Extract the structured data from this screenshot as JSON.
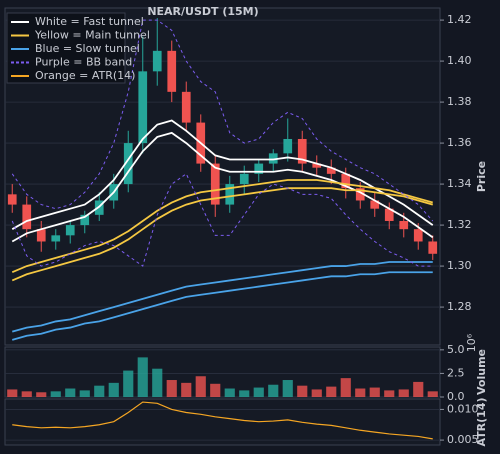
{
  "chart_data": [
    {
      "type": "candlestick",
      "title": "NEAR/USDT (15M)",
      "ylabel": "Price",
      "up_color": "#26a69a",
      "down_color": "#ef5350",
      "open": [
        1.335,
        1.33,
        1.318,
        1.312,
        1.315,
        1.32,
        1.325,
        1.332,
        1.34,
        1.36,
        1.395,
        1.405,
        1.385,
        1.37,
        1.35,
        1.33,
        1.34,
        1.345,
        1.35,
        1.355,
        1.362,
        1.35,
        1.348,
        1.345,
        1.338,
        1.332,
        1.328,
        1.322,
        1.318,
        1.312
      ],
      "high": [
        1.34,
        1.334,
        1.322,
        1.318,
        1.322,
        1.327,
        1.336,
        1.345,
        1.366,
        1.412,
        1.421,
        1.41,
        1.39,
        1.374,
        1.354,
        1.344,
        1.349,
        1.352,
        1.357,
        1.372,
        1.366,
        1.354,
        1.352,
        1.348,
        1.341,
        1.336,
        1.331,
        1.326,
        1.321,
        1.315
      ],
      "low": [
        1.326,
        1.314,
        1.307,
        1.308,
        1.311,
        1.316,
        1.322,
        1.328,
        1.336,
        1.355,
        1.388,
        1.38,
        1.366,
        1.346,
        1.324,
        1.326,
        1.335,
        1.341,
        1.346,
        1.351,
        1.346,
        1.344,
        1.34,
        1.333,
        1.328,
        1.324,
        1.318,
        1.314,
        1.308,
        1.303
      ],
      "close": [
        1.33,
        1.318,
        1.312,
        1.315,
        1.32,
        1.325,
        1.332,
        1.34,
        1.36,
        1.395,
        1.405,
        1.385,
        1.37,
        1.35,
        1.33,
        1.34,
        1.345,
        1.35,
        1.355,
        1.362,
        1.35,
        1.348,
        1.345,
        1.338,
        1.332,
        1.328,
        1.322,
        1.318,
        1.312,
        1.306
      ],
      "series": [
        {
          "color": "#ffffff",
          "values": [
            1.318,
            1.322,
            1.324,
            1.326,
            1.328,
            1.33,
            1.335,
            1.342,
            1.352,
            1.362,
            1.369,
            1.371,
            1.366,
            1.36,
            1.354,
            1.352,
            1.352,
            1.352,
            1.352,
            1.353,
            1.352,
            1.35,
            1.348,
            1.345,
            1.342,
            1.338,
            1.334,
            1.33,
            1.325,
            1.32
          ]
        },
        {
          "color": "#ffffff",
          "values": [
            1.312,
            1.316,
            1.318,
            1.32,
            1.322,
            1.324,
            1.329,
            1.336,
            1.346,
            1.356,
            1.363,
            1.365,
            1.36,
            1.354,
            1.348,
            1.346,
            1.346,
            1.346,
            1.346,
            1.347,
            1.346,
            1.344,
            1.342,
            1.339,
            1.336,
            1.332,
            1.328,
            1.324,
            1.319,
            1.314
          ]
        },
        {
          "color": "#f5c842",
          "values": [
            1.297,
            1.3,
            1.302,
            1.304,
            1.306,
            1.308,
            1.31,
            1.313,
            1.317,
            1.322,
            1.327,
            1.331,
            1.334,
            1.336,
            1.337,
            1.338,
            1.339,
            1.34,
            1.341,
            1.342,
            1.342,
            1.342,
            1.341,
            1.34,
            1.339,
            1.338,
            1.337,
            1.335,
            1.333,
            1.331
          ]
        },
        {
          "color": "#f5c842",
          "values": [
            1.293,
            1.296,
            1.298,
            1.3,
            1.302,
            1.304,
            1.306,
            1.309,
            1.313,
            1.318,
            1.323,
            1.327,
            1.33,
            1.332,
            1.333,
            1.334,
            1.335,
            1.336,
            1.337,
            1.338,
            1.338,
            1.338,
            1.338,
            1.337,
            1.337,
            1.336,
            1.335,
            1.334,
            1.332,
            1.33
          ]
        },
        {
          "color": "#4aa3e8",
          "values": [
            1.268,
            1.27,
            1.271,
            1.273,
            1.274,
            1.276,
            1.278,
            1.28,
            1.282,
            1.284,
            1.286,
            1.288,
            1.29,
            1.291,
            1.292,
            1.293,
            1.294,
            1.295,
            1.296,
            1.297,
            1.298,
            1.299,
            1.3,
            1.3,
            1.301,
            1.301,
            1.302,
            1.302,
            1.302,
            1.302
          ]
        },
        {
          "color": "#4aa3e8",
          "values": [
            1.264,
            1.266,
            1.267,
            1.269,
            1.27,
            1.272,
            1.273,
            1.275,
            1.277,
            1.279,
            1.281,
            1.283,
            1.285,
            1.286,
            1.287,
            1.288,
            1.289,
            1.29,
            1.291,
            1.292,
            1.293,
            1.294,
            1.295,
            1.295,
            1.296,
            1.296,
            1.297,
            1.297,
            1.297,
            1.297
          ]
        },
        {
          "color": "#7b5cf0",
          "dash": true,
          "values": [
            1.345,
            1.335,
            1.33,
            1.328,
            1.33,
            1.336,
            1.345,
            1.36,
            1.385,
            1.42,
            1.42,
            1.415,
            1.4,
            1.39,
            1.385,
            1.365,
            1.36,
            1.362,
            1.37,
            1.375,
            1.372,
            1.362,
            1.356,
            1.352,
            1.348,
            1.345,
            1.34,
            1.335,
            1.33,
            1.322
          ]
        },
        {
          "color": "#7b5cf0",
          "dash": true,
          "values": [
            1.322,
            1.305,
            1.3,
            1.302,
            1.306,
            1.31,
            1.312,
            1.31,
            1.305,
            1.3,
            1.325,
            1.34,
            1.345,
            1.33,
            1.315,
            1.315,
            1.325,
            1.335,
            1.34,
            1.338,
            1.335,
            1.335,
            1.333,
            1.325,
            1.318,
            1.312,
            1.307,
            1.304,
            1.3,
            1.3
          ]
        }
      ],
      "ylim": [
        1.2615,
        1.4259
      ],
      "yticks": [
        {
          "value": 1.28,
          "label": "1.28"
        },
        {
          "value": 1.3,
          "label": "1.30"
        },
        {
          "value": 1.32,
          "label": "1.32"
        },
        {
          "value": 1.34,
          "label": "1.34"
        },
        {
          "value": 1.36,
          "label": "1.36"
        },
        {
          "value": 1.38,
          "label": "1.38"
        },
        {
          "value": 1.4,
          "label": "1.40"
        },
        {
          "value": 1.42,
          "label": "1.42"
        }
      ],
      "grid": true,
      "legend": {
        "position": "upper left",
        "entries": [
          {
            "label": "White = Fast tunnel",
            "color": "#ffffff"
          },
          {
            "label": "Yellow = Main tunnel",
            "color": "#f5c842"
          },
          {
            "label": "Blue = Slow tunnel",
            "color": "#4aa3e8"
          },
          {
            "label": "Purple = BB band",
            "color": "#7b5cf0",
            "dash": true
          },
          {
            "label": "Orange = ATR(14)",
            "color": "#f5a623"
          }
        ]
      }
    },
    {
      "type": "bar",
      "ylabel": "Volume",
      "offset_label": "10⁶",
      "values": [
        0.8,
        0.6,
        0.5,
        0.6,
        0.9,
        0.7,
        1.2,
        1.5,
        2.8,
        4.2,
        3.0,
        1.8,
        1.5,
        2.2,
        1.4,
        0.9,
        0.7,
        1.0,
        1.3,
        1.8,
        1.2,
        0.8,
        1.1,
        2.0,
        0.9,
        1.0,
        0.7,
        0.8,
        1.6,
        0.6
      ],
      "ylim": [
        0,
        5.3
      ],
      "yticks": [
        {
          "value": 0,
          "label": "0.0"
        },
        2.5,
        {
          "value": 5,
          "label": "5.0"
        }
      ],
      "grid": true
    },
    {
      "type": "line",
      "ylabel": "ATR(14)",
      "color": "#f5a623",
      "values": [
        0.0075,
        0.0072,
        0.007,
        0.0071,
        0.007,
        0.0072,
        0.0075,
        0.008,
        0.0095,
        0.0112,
        0.011,
        0.01,
        0.0095,
        0.0092,
        0.0088,
        0.0085,
        0.0082,
        0.008,
        0.0081,
        0.0083,
        0.0079,
        0.0076,
        0.0074,
        0.007,
        0.0066,
        0.0063,
        0.006,
        0.0058,
        0.0056,
        0.0052
      ],
      "ylim": [
        0.0042,
        0.0117
      ],
      "yticks": [
        {
          "value": 0.005,
          "label": "0.005"
        },
        {
          "value": 0.01,
          "label": "0.010"
        }
      ],
      "grid": true
    }
  ]
}
